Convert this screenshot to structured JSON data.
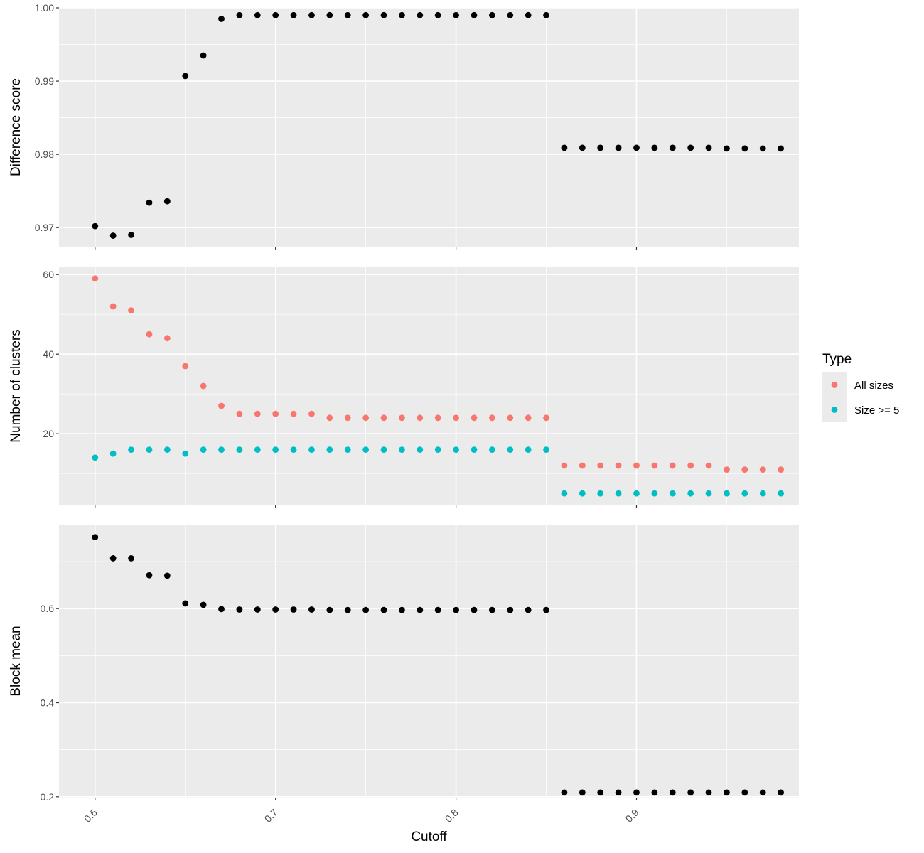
{
  "chart_data": [
    {
      "type": "scatter",
      "ylabel": "Difference score",
      "xlabel": "",
      "xlim": [
        0.58,
        0.99
      ],
      "ylim": [
        0.9674,
        1.0
      ],
      "yticks": [
        0.97,
        0.98,
        0.99,
        1.0
      ],
      "yticklabels": [
        "0.97",
        "0.98",
        "0.99",
        "1.00"
      ],
      "xticks": [
        0.6,
        0.7,
        0.8,
        0.9
      ],
      "grid": true,
      "series": [
        {
          "color": "#000000",
          "x": [
            0.6,
            0.61,
            0.62,
            0.63,
            0.64,
            0.65,
            0.66,
            0.67,
            0.68,
            0.69,
            0.7,
            0.71,
            0.72,
            0.73,
            0.74,
            0.75,
            0.76,
            0.77,
            0.78,
            0.79,
            0.8,
            0.81,
            0.82,
            0.83,
            0.84,
            0.85,
            0.86,
            0.87,
            0.88,
            0.89,
            0.9,
            0.91,
            0.92,
            0.93,
            0.94,
            0.95,
            0.96,
            0.97,
            0.98
          ],
          "y": [
            0.9702,
            0.9689,
            0.969,
            0.9734,
            0.9736,
            0.9907,
            0.9935,
            0.9985,
            0.999,
            0.999,
            0.999,
            0.999,
            0.999,
            0.999,
            0.999,
            0.999,
            0.999,
            0.999,
            0.999,
            0.999,
            0.999,
            0.999,
            0.999,
            0.999,
            0.999,
            0.999,
            0.9809,
            0.9809,
            0.9809,
            0.9809,
            0.9809,
            0.9809,
            0.9809,
            0.9809,
            0.9809,
            0.9808,
            0.9808,
            0.9808,
            0.9808
          ]
        }
      ]
    },
    {
      "type": "scatter",
      "ylabel": "Number of clusters",
      "xlabel": "",
      "xlim": [
        0.58,
        0.99
      ],
      "ylim": [
        2.0,
        62.0
      ],
      "yticks": [
        20,
        40,
        60
      ],
      "yticklabels": [
        "20",
        "40",
        "60"
      ],
      "xticks": [
        0.6,
        0.7,
        0.8,
        0.9
      ],
      "grid": true,
      "legend": {
        "title": "Type",
        "placement": "right"
      },
      "series": [
        {
          "name": "All sizes",
          "color": "#F8766D",
          "x": [
            0.6,
            0.61,
            0.62,
            0.63,
            0.64,
            0.65,
            0.66,
            0.67,
            0.68,
            0.69,
            0.7,
            0.71,
            0.72,
            0.73,
            0.74,
            0.75,
            0.76,
            0.77,
            0.78,
            0.79,
            0.8,
            0.81,
            0.82,
            0.83,
            0.84,
            0.85,
            0.86,
            0.87,
            0.88,
            0.89,
            0.9,
            0.91,
            0.92,
            0.93,
            0.94,
            0.95,
            0.96,
            0.97,
            0.98
          ],
          "y": [
            59,
            52,
            51,
            45,
            44,
            37,
            32,
            27,
            25,
            25,
            25,
            25,
            25,
            24,
            24,
            24,
            24,
            24,
            24,
            24,
            24,
            24,
            24,
            24,
            24,
            24,
            12,
            12,
            12,
            12,
            12,
            12,
            12,
            12,
            12,
            11,
            11,
            11,
            11
          ]
        },
        {
          "name": "Size >= 5",
          "color": "#00BFC4",
          "x": [
            0.6,
            0.61,
            0.62,
            0.63,
            0.64,
            0.65,
            0.66,
            0.67,
            0.68,
            0.69,
            0.7,
            0.71,
            0.72,
            0.73,
            0.74,
            0.75,
            0.76,
            0.77,
            0.78,
            0.79,
            0.8,
            0.81,
            0.82,
            0.83,
            0.84,
            0.85,
            0.86,
            0.87,
            0.88,
            0.89,
            0.9,
            0.91,
            0.92,
            0.93,
            0.94,
            0.95,
            0.96,
            0.97,
            0.98
          ],
          "y": [
            14,
            15,
            16,
            16,
            16,
            15,
            16,
            16,
            16,
            16,
            16,
            16,
            16,
            16,
            16,
            16,
            16,
            16,
            16,
            16,
            16,
            16,
            16,
            16,
            16,
            16,
            5,
            5,
            5,
            5,
            5,
            5,
            5,
            5,
            5,
            5,
            5,
            5,
            5
          ]
        }
      ]
    },
    {
      "type": "scatter",
      "ylabel": "Block mean",
      "xlabel": "Cutoff",
      "xlim": [
        0.58,
        0.99
      ],
      "ylim": [
        0.1982,
        0.7787
      ],
      "yticks": [
        0.2,
        0.4,
        0.6
      ],
      "yticklabels": [
        "0.2",
        "0.4",
        "0.6"
      ],
      "xticks": [
        0.6,
        0.7,
        0.8,
        0.9
      ],
      "xticklabels": [
        "0.6",
        "0.7",
        "0.8",
        "0.9"
      ],
      "grid": true,
      "series": [
        {
          "color": "#000000",
          "x": [
            0.6,
            0.61,
            0.62,
            0.63,
            0.64,
            0.65,
            0.66,
            0.67,
            0.68,
            0.69,
            0.7,
            0.71,
            0.72,
            0.73,
            0.74,
            0.75,
            0.76,
            0.77,
            0.78,
            0.79,
            0.8,
            0.81,
            0.82,
            0.83,
            0.84,
            0.85,
            0.86,
            0.87,
            0.88,
            0.89,
            0.9,
            0.91,
            0.92,
            0.93,
            0.94,
            0.95,
            0.96,
            0.97,
            0.98
          ],
          "y": [
            0.752,
            0.707,
            0.707,
            0.671,
            0.67,
            0.611,
            0.608,
            0.599,
            0.598,
            0.598,
            0.598,
            0.598,
            0.598,
            0.597,
            0.597,
            0.597,
            0.597,
            0.597,
            0.597,
            0.597,
            0.597,
            0.597,
            0.597,
            0.597,
            0.597,
            0.597,
            0.209,
            0.209,
            0.209,
            0.209,
            0.209,
            0.209,
            0.209,
            0.209,
            0.209,
            0.209,
            0.209,
            0.209,
            0.209
          ]
        }
      ]
    }
  ]
}
